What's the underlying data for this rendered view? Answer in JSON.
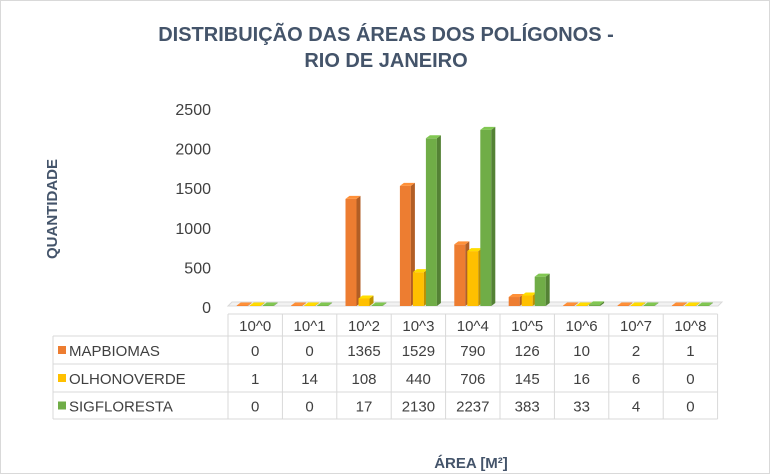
{
  "chart_data": {
    "type": "bar",
    "title": [
      "DISTRIBUIÇÃO DAS ÁREAS DOS POLÍGONOS -",
      "RIO DE JANEIRO"
    ],
    "xlabel": "ÁREA [M²]",
    "ylabel": "QUANTIDADE",
    "ylim": [
      0,
      2500
    ],
    "yticks": [
      "0",
      "500",
      "1000",
      "1500",
      "2000",
      "2500"
    ],
    "categories": [
      "10^0",
      "10^1",
      "10^2",
      "10^3",
      "10^4",
      "10^5",
      "10^6",
      "10^7",
      "10^8"
    ],
    "series": [
      {
        "name": "MAPBIOMAS",
        "color": "#ED7D31",
        "values": [
          0,
          0,
          1365,
          1529,
          790,
          126,
          10,
          2,
          1
        ]
      },
      {
        "name": "OLHONOVERDE",
        "color": "#FFC000",
        "values": [
          1,
          14,
          108,
          440,
          706,
          145,
          16,
          6,
          0
        ]
      },
      {
        "name": "SIGFLORESTA",
        "color": "#70AD47",
        "values": [
          0,
          0,
          17,
          2130,
          2237,
          383,
          33,
          4,
          0
        ]
      }
    ],
    "legend": "data-table",
    "grid": false
  }
}
